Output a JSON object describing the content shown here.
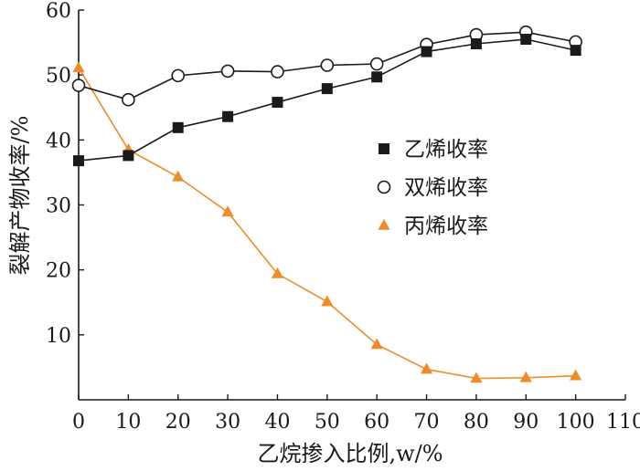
{
  "chart_data": {
    "type": "line",
    "xlabel": "乙烷掺入比例,w/%",
    "ylabel": "裂解产物收率/%",
    "xlim": [
      0,
      110
    ],
    "ylim": [
      0,
      60
    ],
    "xticks": [
      0,
      10,
      20,
      30,
      40,
      50,
      60,
      70,
      80,
      90,
      100,
      110
    ],
    "yticks": [
      10,
      20,
      30,
      40,
      50,
      60
    ],
    "legend_position": "center-right",
    "grid": false,
    "series": [
      {
        "name": "乙烯收率",
        "marker": "filled-square",
        "color": "#1a1a1a",
        "x": [
          0,
          10,
          20,
          30,
          40,
          50,
          60,
          70,
          80,
          90,
          100
        ],
        "y": [
          36.8,
          37.6,
          41.9,
          43.6,
          45.8,
          47.9,
          49.7,
          53.6,
          54.8,
          55.5,
          53.8
        ]
      },
      {
        "name": "双烯收率",
        "marker": "open-circle",
        "color": "#1a1a1a",
        "x": [
          0,
          10,
          20,
          30,
          40,
          50,
          60,
          70,
          80,
          90,
          100
        ],
        "y": [
          48.4,
          46.2,
          49.9,
          50.6,
          50.5,
          51.5,
          51.7,
          54.7,
          56.2,
          56.6,
          55.1
        ]
      },
      {
        "name": "丙烯收率",
        "marker": "filled-triangle",
        "color": "#f08c28",
        "x": [
          0,
          10,
          20,
          30,
          40,
          50,
          60,
          70,
          80,
          90,
          100
        ],
        "y": [
          51.1,
          38.5,
          34.3,
          28.9,
          19.4,
          15.1,
          8.5,
          4.7,
          3.3,
          3.4,
          3.7
        ]
      }
    ]
  }
}
